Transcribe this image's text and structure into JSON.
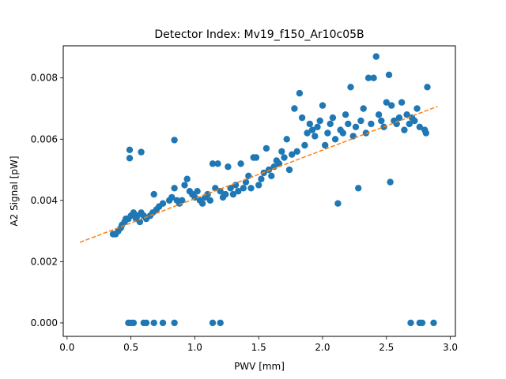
{
  "chart_data": {
    "type": "scatter",
    "title": "Detector Index: Mv19_f150_Ar10c05B",
    "xlabel": "PWV [mm]",
    "ylabel": "A2 Signal [pW]",
    "xlim": [
      -0.03,
      3.04
    ],
    "ylim": [
      -0.00044,
      0.00905
    ],
    "xticks": [
      0.0,
      0.5,
      1.0,
      1.5,
      2.0,
      2.5,
      3.0
    ],
    "xtick_labels": [
      "0.0",
      "0.5",
      "1.0",
      "1.5",
      "2.0",
      "2.5",
      "3.0"
    ],
    "yticks": [
      0.0,
      0.002,
      0.004,
      0.006,
      0.008
    ],
    "ytick_labels": [
      "0.000",
      "0.002",
      "0.004",
      "0.006",
      "0.008"
    ],
    "grid": false,
    "colors": {
      "points": "#1f77b4",
      "fit": "#ff7f0e",
      "axes": "#000000"
    },
    "fit_line": {
      "x": [
        0.1,
        2.9
      ],
      "y": [
        0.00263,
        0.00707
      ],
      "style": "dashed"
    },
    "series": [
      {
        "name": "measurements",
        "points": [
          [
            0.48,
            0
          ],
          [
            0.5,
            0
          ],
          [
            0.52,
            0
          ],
          [
            0.6,
            0
          ],
          [
            0.62,
            0
          ],
          [
            0.68,
            0
          ],
          [
            0.75,
            0
          ],
          [
            0.84,
            0
          ],
          [
            1.14,
            0
          ],
          [
            1.2,
            0
          ],
          [
            2.69,
            0
          ],
          [
            2.76,
            0
          ],
          [
            2.78,
            0
          ],
          [
            2.87,
            0
          ],
          [
            0.49,
            0.00538
          ],
          [
            0.49,
            0.00565
          ],
          [
            0.58,
            0.00558
          ],
          [
            0.84,
            0.00597
          ],
          [
            0.36,
            0.0029
          ],
          [
            0.38,
            0.0029
          ],
          [
            0.4,
            0.003
          ],
          [
            0.42,
            0.0031
          ],
          [
            0.43,
            0.0032
          ],
          [
            0.45,
            0.0033
          ],
          [
            0.46,
            0.0034
          ],
          [
            0.48,
            0.0034
          ],
          [
            0.5,
            0.0035
          ],
          [
            0.52,
            0.0036
          ],
          [
            0.54,
            0.0034
          ],
          [
            0.55,
            0.0035
          ],
          [
            0.57,
            0.0033
          ],
          [
            0.58,
            0.0036
          ],
          [
            0.6,
            0.0035
          ],
          [
            0.62,
            0.0034
          ],
          [
            0.65,
            0.0035
          ],
          [
            0.67,
            0.0036
          ],
          [
            0.7,
            0.0037
          ],
          [
            0.72,
            0.0038
          ],
          [
            0.68,
            0.0042
          ],
          [
            0.75,
            0.0039
          ],
          [
            0.8,
            0.004
          ],
          [
            0.82,
            0.0041
          ],
          [
            0.84,
            0.0044
          ],
          [
            0.86,
            0.004
          ],
          [
            0.88,
            0.0039
          ],
          [
            0.9,
            0.004
          ],
          [
            0.92,
            0.0045
          ],
          [
            0.94,
            0.0047
          ],
          [
            0.96,
            0.0043
          ],
          [
            0.98,
            0.0042
          ],
          [
            1.0,
            0.0041
          ],
          [
            1.02,
            0.0043
          ],
          [
            1.04,
            0.004
          ],
          [
            1.06,
            0.0039
          ],
          [
            1.08,
            0.0041
          ],
          [
            1.1,
            0.0042
          ],
          [
            1.12,
            0.004
          ],
          [
            1.14,
            0.0052
          ],
          [
            1.16,
            0.0044
          ],
          [
            1.18,
            0.0052
          ],
          [
            1.2,
            0.0043
          ],
          [
            1.22,
            0.0041
          ],
          [
            1.24,
            0.0042
          ],
          [
            1.26,
            0.0051
          ],
          [
            1.28,
            0.0044
          ],
          [
            1.3,
            0.0042
          ],
          [
            1.32,
            0.0045
          ],
          [
            1.34,
            0.0043
          ],
          [
            1.36,
            0.0052
          ],
          [
            1.38,
            0.0044
          ],
          [
            1.4,
            0.0046
          ],
          [
            1.42,
            0.0048
          ],
          [
            1.44,
            0.0044
          ],
          [
            1.46,
            0.0054
          ],
          [
            1.48,
            0.0054
          ],
          [
            1.5,
            0.0045
          ],
          [
            1.52,
            0.0047
          ],
          [
            1.54,
            0.0049
          ],
          [
            1.56,
            0.0057
          ],
          [
            1.58,
            0.005
          ],
          [
            1.6,
            0.0048
          ],
          [
            1.62,
            0.0051
          ],
          [
            1.64,
            0.0053
          ],
          [
            1.66,
            0.0052
          ],
          [
            1.68,
            0.0056
          ],
          [
            1.7,
            0.0054
          ],
          [
            1.72,
            0.006
          ],
          [
            1.74,
            0.005
          ],
          [
            1.76,
            0.0055
          ],
          [
            1.78,
            0.007
          ],
          [
            1.8,
            0.0056
          ],
          [
            1.82,
            0.0075
          ],
          [
            1.84,
            0.0067
          ],
          [
            1.86,
            0.0058
          ],
          [
            1.88,
            0.0062
          ],
          [
            1.9,
            0.0065
          ],
          [
            1.92,
            0.0063
          ],
          [
            1.94,
            0.0061
          ],
          [
            1.96,
            0.0064
          ],
          [
            1.98,
            0.0066
          ],
          [
            2.0,
            0.0071
          ],
          [
            2.02,
            0.0058
          ],
          [
            2.04,
            0.0062
          ],
          [
            2.06,
            0.0065
          ],
          [
            2.08,
            0.0067
          ],
          [
            2.1,
            0.006
          ],
          [
            2.12,
            0.0039
          ],
          [
            2.14,
            0.0063
          ],
          [
            2.16,
            0.0062
          ],
          [
            2.18,
            0.0068
          ],
          [
            2.2,
            0.0065
          ],
          [
            2.22,
            0.0077
          ],
          [
            2.24,
            0.0061
          ],
          [
            2.26,
            0.0064
          ],
          [
            2.28,
            0.0044
          ],
          [
            2.3,
            0.0066
          ],
          [
            2.32,
            0.007
          ],
          [
            2.34,
            0.0062
          ],
          [
            2.36,
            0.008
          ],
          [
            2.38,
            0.0065
          ],
          [
            2.4,
            0.008
          ],
          [
            2.42,
            0.0087
          ],
          [
            2.44,
            0.0068
          ],
          [
            2.46,
            0.0066
          ],
          [
            2.48,
            0.0064
          ],
          [
            2.5,
            0.0072
          ],
          [
            2.52,
            0.0081
          ],
          [
            2.53,
            0.0046
          ],
          [
            2.54,
            0.0071
          ],
          [
            2.56,
            0.0066
          ],
          [
            2.58,
            0.0065
          ],
          [
            2.6,
            0.0067
          ],
          [
            2.62,
            0.0072
          ],
          [
            2.64,
            0.0063
          ],
          [
            2.66,
            0.0068
          ],
          [
            2.68,
            0.0065
          ],
          [
            2.7,
            0.0067
          ],
          [
            2.72,
            0.0066
          ],
          [
            2.74,
            0.007
          ],
          [
            2.76,
            0.0064
          ],
          [
            2.8,
            0.0063
          ],
          [
            2.81,
            0.0062
          ],
          [
            2.82,
            0.0077
          ]
        ]
      }
    ]
  }
}
